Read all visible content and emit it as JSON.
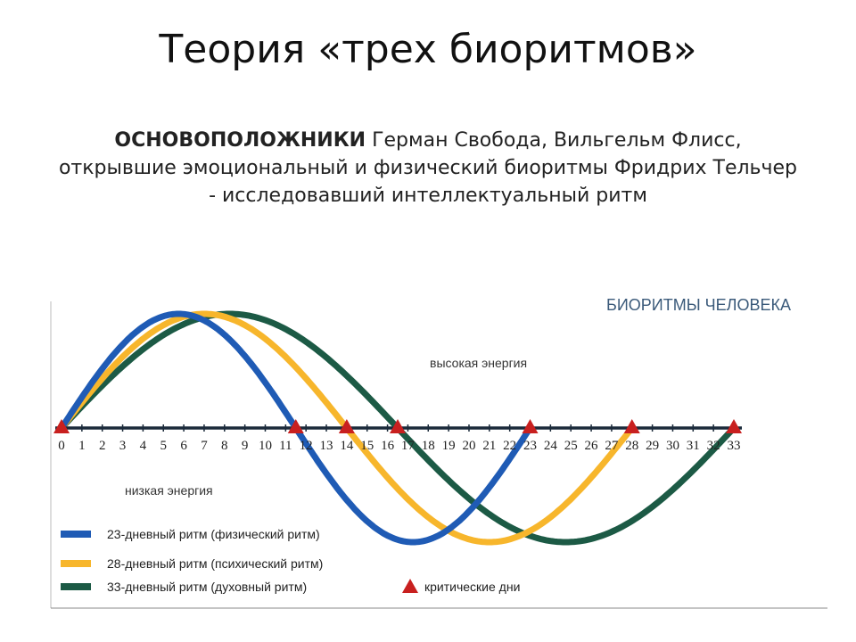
{
  "slide": {
    "title": "Теория «трех биоритмов»",
    "founders_label": "ОСНОВОПОЛОЖНИКИ",
    "founders_text": " Герман Свобода, Вильгельм Флисс, открывшие эмоциональный и физический биоритмы Фридрих Тельчер - исследовавший интеллектуальный ритм"
  },
  "chart_data": {
    "type": "line",
    "title": "БИОРИТМЫ ЧЕЛОВЕКА",
    "x_ticks": [
      0,
      1,
      2,
      3,
      4,
      5,
      6,
      7,
      8,
      9,
      10,
      11,
      12,
      13,
      14,
      15,
      16,
      17,
      18,
      19,
      20,
      21,
      22,
      23,
      24,
      25,
      26,
      27,
      28,
      29,
      30,
      31,
      32,
      33
    ],
    "xlim": [
      0,
      33
    ],
    "grid": false,
    "legend_position": "bottom-left",
    "annotations": {
      "high": "высокая энергия",
      "low": "низкая энергия"
    },
    "series": [
      {
        "name": "23-дневный ритм (физический ритм)",
        "period": 23,
        "color": "#1f5bb5"
      },
      {
        "name": "28-дневный ритм (психический ритм)",
        "period": 28,
        "color": "#f7b62c"
      },
      {
        "name": "33-дневный ритм (духовный ритм)",
        "period": 33,
        "color": "#1c5a45"
      }
    ],
    "critical_days": {
      "label": "критические дни",
      "days": [
        0,
        11.5,
        14,
        16.5,
        23,
        28,
        33
      ],
      "color": "#c8201f"
    }
  }
}
